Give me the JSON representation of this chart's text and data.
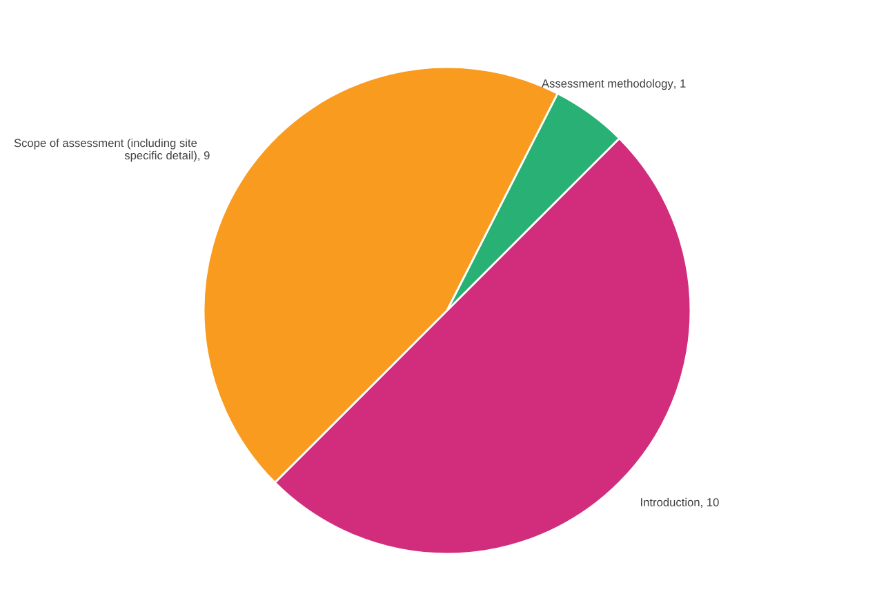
{
  "chart_data": {
    "type": "pie",
    "categories": [
      "Introduction",
      "Scope of assessment (including site specific detail)",
      "Assessment methodology"
    ],
    "values": [
      10,
      9,
      1
    ],
    "colors": [
      "#d22d7c",
      "#f99b1f",
      "#29b074"
    ],
    "value_labels": [
      ", 10",
      ", 9",
      ", 1"
    ],
    "legend": false
  }
}
